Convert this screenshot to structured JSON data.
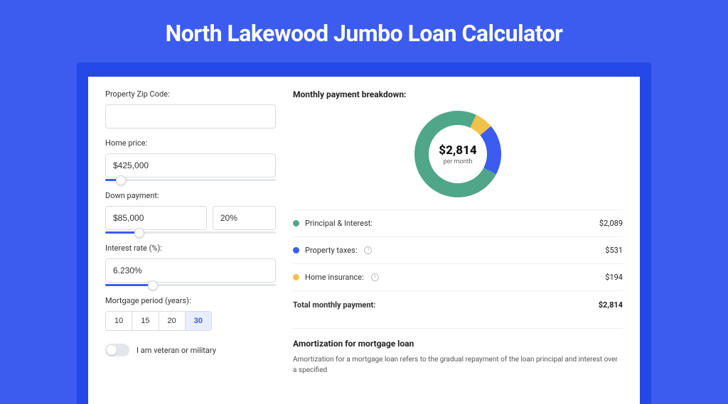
{
  "title": "North Lakewood Jumbo Loan Calculator",
  "colors": {
    "page_bg": "#3c5cf0",
    "inner_bg": "#2449e6",
    "card_bg": "#ffffff",
    "border": "#d8dbe0",
    "divider": "#eceef2",
    "text": "#222222",
    "muted": "#666666",
    "slider_track": "#e3e6ea",
    "slider_fill": "#3c5cf0",
    "active_bg": "#e8edff"
  },
  "form": {
    "zip": {
      "label": "Property Zip Code:",
      "value": ""
    },
    "home_price": {
      "label": "Home price:",
      "value": "$425,000",
      "slider_pct": 9
    },
    "down_payment": {
      "label": "Down payment:",
      "amount": "$85,000",
      "pct": "20%",
      "slider_pct": 20
    },
    "interest_rate": {
      "label": "Interest rate (%):",
      "value": "6.230%",
      "slider_pct": 28
    },
    "period": {
      "label": "Mortgage period (years):",
      "options": [
        "10",
        "15",
        "20",
        "30"
      ],
      "active": "30"
    },
    "veteran": {
      "label": "I am veteran or military",
      "on": false
    }
  },
  "breakdown": {
    "header": "Monthly payment breakdown:",
    "donut": {
      "amount": "$2,814",
      "sublabel": "per month",
      "size": 122,
      "stroke": 20,
      "segments": [
        {
          "name": "principal_interest",
          "color": "#4fa689",
          "pct": 74.2
        },
        {
          "name": "property_taxes",
          "color": "#3c5cf0",
          "pct": 18.9
        },
        {
          "name": "home_insurance",
          "color": "#f0c24a",
          "pct": 6.9
        }
      ]
    },
    "rows": [
      {
        "label": "Principal & Interest:",
        "value": "$2,089",
        "color": "#4fa689",
        "info": false
      },
      {
        "label": "Property taxes:",
        "value": "$531",
        "color": "#3c5cf0",
        "info": true
      },
      {
        "label": "Home insurance:",
        "value": "$194",
        "color": "#f0c24a",
        "info": true
      }
    ],
    "total": {
      "label": "Total monthly payment:",
      "value": "$2,814"
    }
  },
  "amortization": {
    "header": "Amortization for mortgage loan",
    "text": "Amortization for a mortgage loan refers to the gradual repayment of the loan principal and interest over a specified"
  }
}
